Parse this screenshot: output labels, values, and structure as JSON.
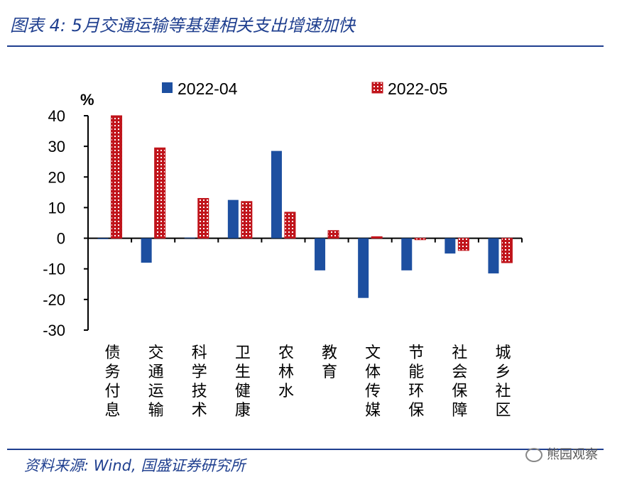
{
  "title": "图表 4:  5月交通运输等基建相关支出增速加快",
  "source": "资料来源:  Wind,  国盛证券研究所",
  "watermark": "熊园观察",
  "colors": {
    "accent": "#1f3f8f",
    "series1": "#1d4fa0",
    "series2": "#c0141b"
  },
  "chart_data": {
    "type": "bar",
    "title": "5月交通运输等基建相关支出增速加快",
    "ylabel": "%",
    "xlabel": "",
    "ylim": [
      -30,
      40
    ],
    "yticks": [
      40,
      30,
      20,
      10,
      0,
      -10,
      -20,
      -30
    ],
    "legend": "top",
    "categories": [
      "债务付息",
      "交通运输",
      "科学技术",
      "卫生健康",
      "农林水",
      "教育",
      "文体传媒",
      "节能环保",
      "社会保障",
      "城乡社区"
    ],
    "series": [
      {
        "name": "2022-04",
        "values": [
          -0.3,
          -8,
          0.2,
          12.5,
          28.5,
          -10.5,
          -19.5,
          -10.5,
          -5,
          -11.5
        ]
      },
      {
        "name": "2022-05",
        "values": [
          40,
          29.5,
          13,
          12,
          8.5,
          2.5,
          0.5,
          -0.5,
          -4,
          -8
        ]
      }
    ]
  }
}
